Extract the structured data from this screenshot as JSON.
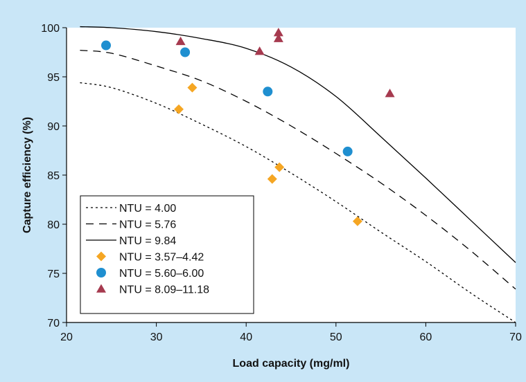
{
  "chart_data": {
    "type": "scatter",
    "xlabel": "Load capacity (mg/ml)",
    "ylabel": "Capture efficiency (%)",
    "xlim": [
      20,
      70
    ],
    "ylim": [
      70,
      100
    ],
    "xticks": [
      "20",
      "30",
      "40",
      "50",
      "60",
      "70"
    ],
    "yticks": [
      "70",
      "75",
      "80",
      "85",
      "90",
      "95",
      "100"
    ],
    "grid": false,
    "legend_position": "bottom-left",
    "colors": {
      "background": "#c9e6f7",
      "plot_area": "#ffffff",
      "diamond": "#f5a623",
      "circle": "#1f8fd0",
      "triangle": "#a63a4f",
      "line": "#000000"
    },
    "lines": [
      {
        "name": "NTU = 4.00",
        "style": "dotted",
        "points": [
          [
            21.5,
            94.4
          ],
          [
            25,
            93.9
          ],
          [
            30,
            92.3
          ],
          [
            35,
            90.2
          ],
          [
            40,
            87.9
          ],
          [
            45,
            85.2
          ],
          [
            50,
            82.3
          ],
          [
            55,
            79.2
          ],
          [
            60,
            76.2
          ],
          [
            65,
            73.0
          ],
          [
            70,
            70.0
          ]
        ]
      },
      {
        "name": "NTU = 5.76",
        "style": "dashed",
        "points": [
          [
            21.5,
            97.7
          ],
          [
            25,
            97.4
          ],
          [
            30,
            96.1
          ],
          [
            35,
            94.6
          ],
          [
            40,
            92.5
          ],
          [
            45,
            90.0
          ],
          [
            50,
            87.2
          ],
          [
            55,
            84.2
          ],
          [
            60,
            80.9
          ],
          [
            65,
            77.3
          ],
          [
            70,
            73.4
          ]
        ]
      },
      {
        "name": "NTU = 9.84",
        "style": "solid",
        "points": [
          [
            21.5,
            100.1
          ],
          [
            25,
            100.0
          ],
          [
            30,
            99.6
          ],
          [
            35,
            98.9
          ],
          [
            40,
            97.9
          ],
          [
            45,
            96.0
          ],
          [
            50,
            93.0
          ],
          [
            55,
            88.9
          ],
          [
            60,
            84.7
          ],
          [
            65,
            80.4
          ],
          [
            70,
            76.1
          ]
        ]
      }
    ],
    "series": [
      {
        "name": "NTU = 3.57–4.42",
        "marker": "diamond",
        "points": [
          [
            32.5,
            91.7
          ],
          [
            34.0,
            93.9
          ],
          [
            42.9,
            84.6
          ],
          [
            43.7,
            85.8
          ],
          [
            52.4,
            80.3
          ]
        ]
      },
      {
        "name": "NTU = 5.60–6.00",
        "marker": "circle",
        "points": [
          [
            24.4,
            98.2
          ],
          [
            33.2,
            97.5
          ],
          [
            42.4,
            93.5
          ],
          [
            51.3,
            87.4
          ]
        ]
      },
      {
        "name": "NTU = 8.09–11.18",
        "marker": "triangle",
        "points": [
          [
            32.7,
            98.6
          ],
          [
            41.5,
            97.6
          ],
          [
            43.6,
            99.5
          ],
          [
            43.6,
            98.9
          ],
          [
            56.0,
            93.3
          ]
        ]
      }
    ]
  }
}
